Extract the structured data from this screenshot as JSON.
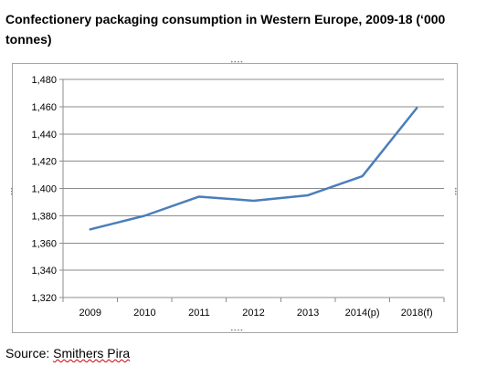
{
  "chart_data": {
    "type": "line",
    "title": "Confectionery packaging consumption in Western Europe, 2009-18 (‘000 tonnes)",
    "categories": [
      "2009",
      "2010",
      "2011",
      "2012",
      "2013",
      "2014(p)",
      "2018(f)"
    ],
    "series": [
      {
        "values": [
          1370,
          1380,
          1394,
          1391,
          1395,
          1409,
          1459
        ]
      }
    ],
    "ylim": [
      1320,
      1480
    ],
    "yticks": [
      "1,320",
      "1,340",
      "1,360",
      "1,380",
      "1,400",
      "1,420",
      "1,440",
      "1,460",
      "1,480"
    ],
    "grid": true,
    "line_color": "#4a7ebb"
  },
  "source": {
    "label": "Source: ",
    "name": "Smithers Pira"
  }
}
